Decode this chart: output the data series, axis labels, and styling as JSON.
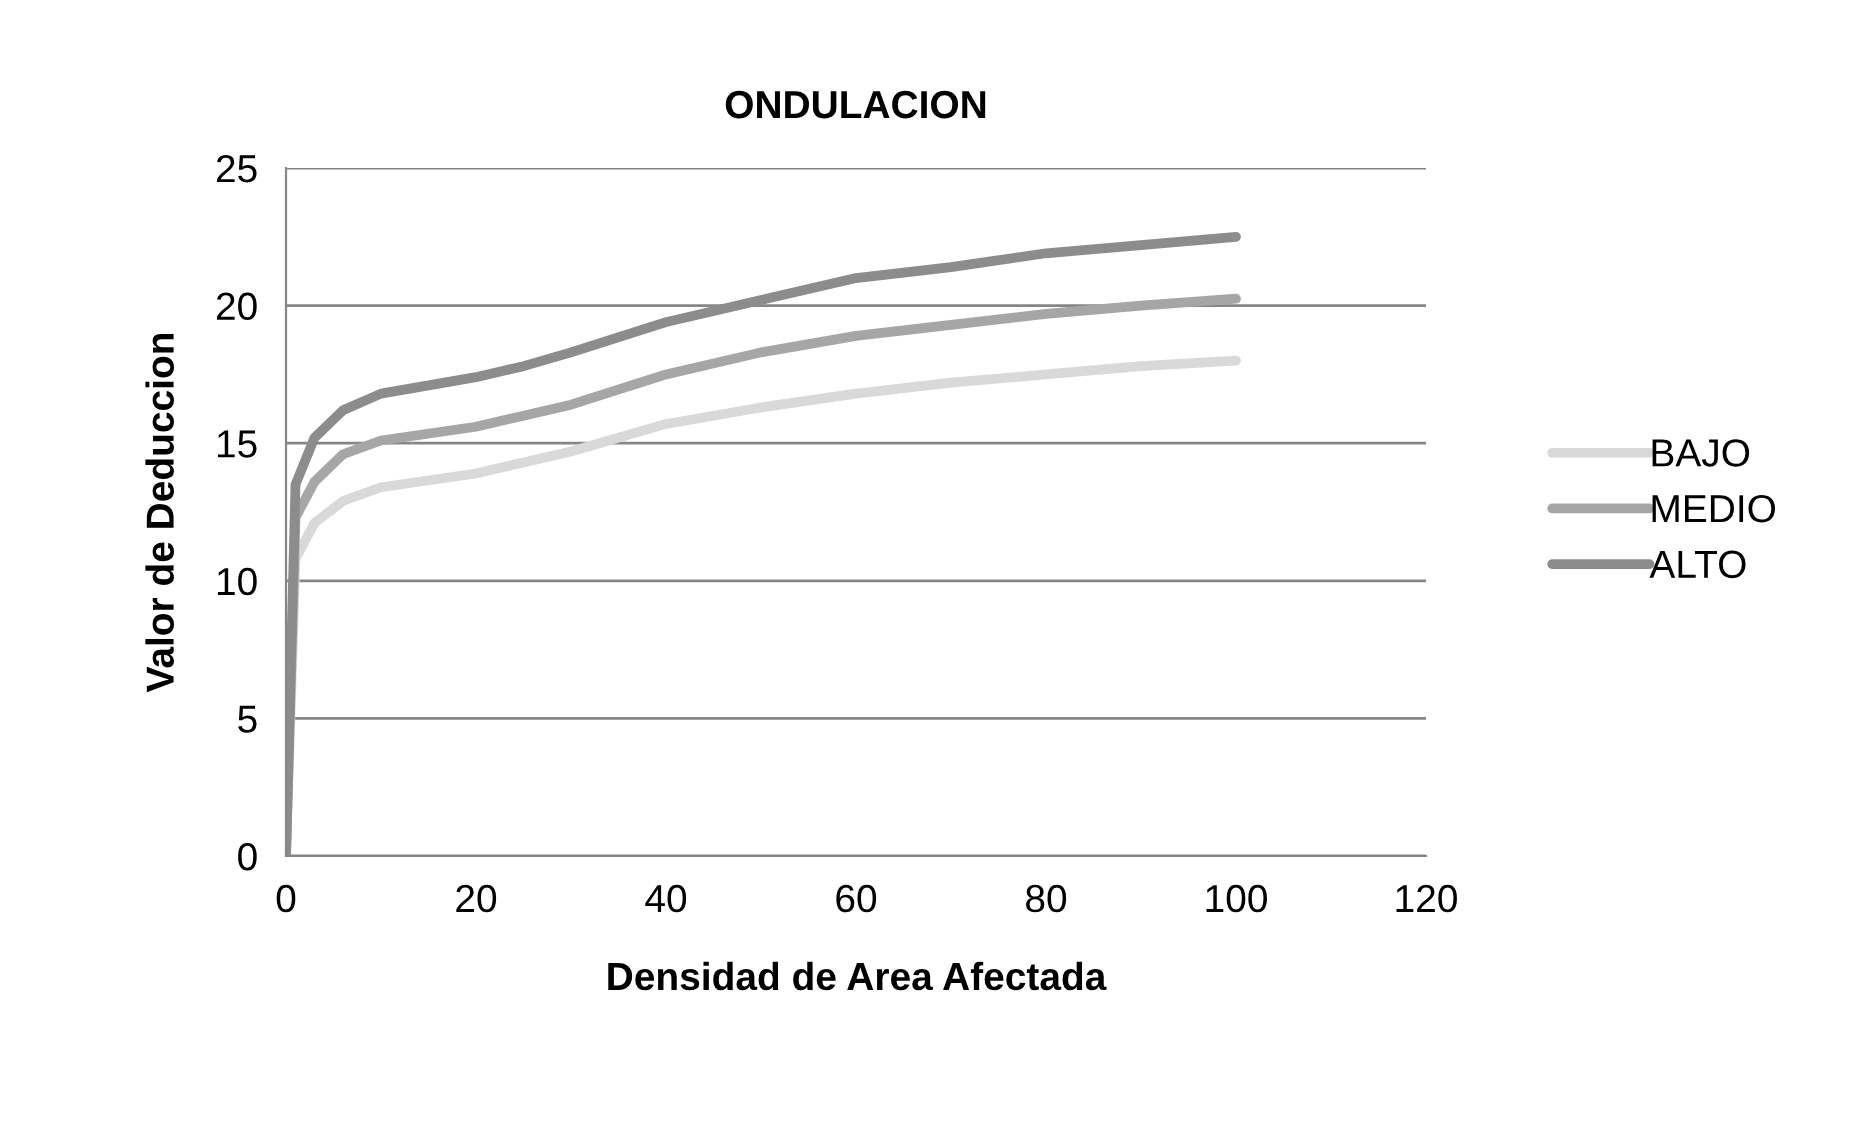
{
  "chart_data": {
    "type": "line",
    "title": "ONDULACION",
    "xlabel": "Densidad de Area Afectada",
    "ylabel": "Valor de Deduccion",
    "x": [
      0,
      1,
      3,
      6,
      10,
      20,
      25,
      30,
      40,
      50,
      60,
      70,
      80,
      90,
      100
    ],
    "series": [
      {
        "name": "BAJO",
        "color": "#d9d9d9",
        "values": [
          0,
          10.8,
          12.1,
          12.9,
          13.4,
          13.9,
          14.3,
          14.7,
          15.7,
          16.3,
          16.8,
          17.2,
          17.5,
          17.8,
          18.0
        ]
      },
      {
        "name": "MEDIO",
        "color": "#a6a6a6",
        "values": [
          0,
          12.3,
          13.6,
          14.6,
          15.1,
          15.6,
          16.0,
          16.4,
          17.5,
          18.3,
          18.9,
          19.3,
          19.7,
          20.0,
          20.25
        ]
      },
      {
        "name": "ALTO",
        "color": "#8c8c8c",
        "values": [
          0,
          13.5,
          15.2,
          16.2,
          16.8,
          17.4,
          17.8,
          18.3,
          19.4,
          20.2,
          21.0,
          21.4,
          21.9,
          22.2,
          22.5
        ]
      }
    ],
    "xlim": [
      0,
      120
    ],
    "xticks": [
      0,
      20,
      40,
      60,
      80,
      100,
      120
    ],
    "ylim": [
      0,
      25
    ],
    "yticks": [
      0,
      5,
      10,
      15,
      20,
      25
    ],
    "grid": "y",
    "legend": "right",
    "marker": "none",
    "line_style": "solid"
  }
}
